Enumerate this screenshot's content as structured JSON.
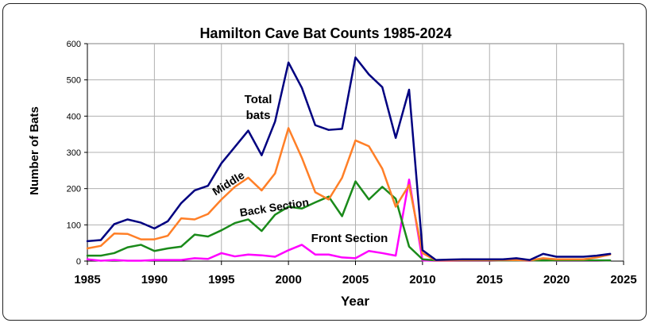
{
  "chart_data": {
    "type": "line",
    "title": "Hamilton Cave Bat Counts 1985-2024",
    "xlabel": "Year",
    "ylabel": "Number of Bats",
    "xlim": [
      1985,
      2025
    ],
    "ylim": [
      0,
      600
    ],
    "x_ticks": [
      1985,
      1990,
      1995,
      2000,
      2005,
      2010,
      2015,
      2020,
      2025
    ],
    "y_ticks": [
      0,
      100,
      200,
      300,
      400,
      500,
      600
    ],
    "grid": true,
    "legend": "none (series labelled directly on the plot)",
    "x": [
      1985,
      1986,
      1987,
      1988,
      1989,
      1990,
      1991,
      1992,
      1993,
      1994,
      1995,
      1996,
      1997,
      1998,
      1999,
      2000,
      2001,
      2002,
      2003,
      2004,
      2005,
      2006,
      2007,
      2008,
      2009,
      2010,
      2011,
      2012,
      2013,
      2014,
      2015,
      2016,
      2017,
      2018,
      2019,
      2020,
      2021,
      2022,
      2023,
      2024
    ],
    "series": [
      {
        "name": "Total bats",
        "color": "#000080",
        "values": [
          55,
          58,
          102,
          115,
          106,
          90,
          110,
          160,
          195,
          208,
          270,
          315,
          360,
          292,
          385,
          548,
          478,
          375,
          362,
          365,
          562,
          515,
          480,
          340,
          473,
          30,
          3,
          4,
          5,
          5,
          5,
          5,
          8,
          3,
          20,
          12,
          12,
          12,
          15,
          20
        ]
      },
      {
        "name": "Middle",
        "color": "#ff7f27",
        "values": [
          35,
          42,
          76,
          75,
          60,
          60,
          70,
          118,
          115,
          130,
          170,
          205,
          230,
          195,
          242,
          367,
          285,
          190,
          170,
          230,
          333,
          317,
          255,
          150,
          210,
          22,
          2,
          2,
          3,
          3,
          3,
          3,
          3,
          2,
          8,
          5,
          5,
          5,
          10,
          18
        ]
      },
      {
        "name": "Back Section",
        "color": "#1a8a1a",
        "values": [
          15,
          15,
          22,
          38,
          45,
          28,
          35,
          40,
          73,
          68,
          85,
          105,
          115,
          83,
          128,
          150,
          145,
          162,
          178,
          124,
          220,
          170,
          205,
          172,
          40,
          5,
          2,
          2,
          2,
          2,
          2,
          2,
          2,
          2,
          2,
          2,
          2,
          2,
          2,
          2
        ]
      },
      {
        "name": "Front Section",
        "color": "#ff00ff",
        "values": [
          5,
          1,
          3,
          1,
          1,
          3,
          3,
          3,
          8,
          6,
          22,
          13,
          18,
          16,
          12,
          30,
          45,
          18,
          18,
          10,
          8,
          28,
          22,
          15,
          225,
          2,
          1,
          1,
          1,
          1,
          1,
          2,
          2,
          1,
          3,
          1,
          1,
          1,
          1,
          2
        ]
      }
    ],
    "annotations": [
      {
        "text": "Total",
        "series": "Total bats"
      },
      {
        "text": "bats",
        "series": "Total bats"
      },
      {
        "text": "Middle",
        "series": "Middle"
      },
      {
        "text": "Back Section",
        "series": "Back Section"
      },
      {
        "text": "Front Section",
        "series": "Front Section"
      }
    ]
  }
}
